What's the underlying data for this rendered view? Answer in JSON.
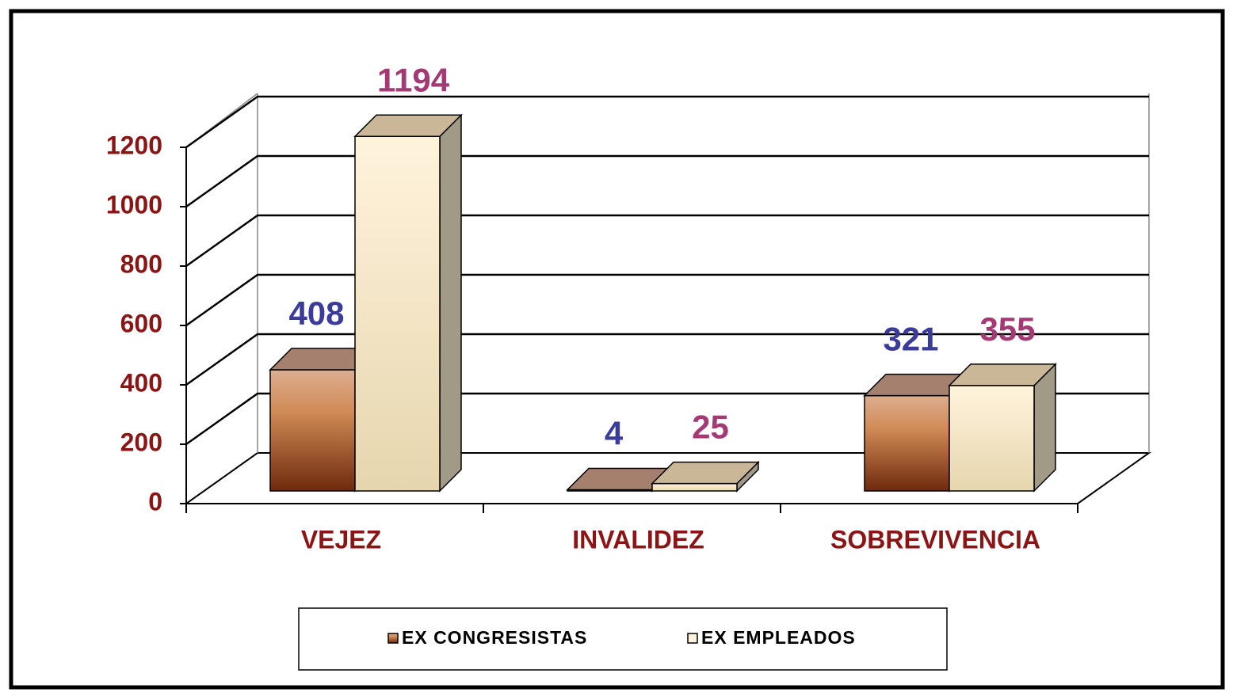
{
  "chart_data": {
    "type": "bar3d",
    "categories": [
      "VEJEZ",
      "INVALIDEZ",
      "SOBREVIVENCIA"
    ],
    "series": [
      {
        "name": "EX CONGRESISTAS",
        "color": "#b5602a",
        "label_color": "#3b3b9c",
        "values": [
          408,
          4,
          321
        ]
      },
      {
        "name": "EX EMPLEADOS",
        "color": "#fff3d9",
        "label_color": "#a33a74",
        "values": [
          1194,
          25,
          355
        ]
      }
    ],
    "ylim": [
      0,
      1200
    ],
    "yticks": [
      0,
      200,
      400,
      600,
      800,
      1000,
      1200
    ],
    "grid": true,
    "legend": "bottom"
  }
}
